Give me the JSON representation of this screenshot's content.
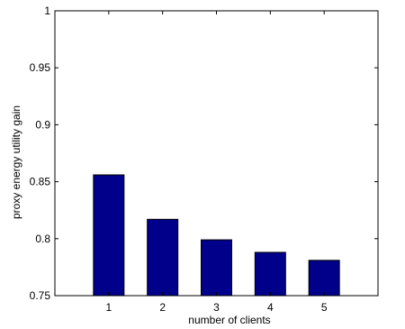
{
  "chart_data": {
    "type": "bar",
    "categories": [
      "1",
      "2",
      "3",
      "4",
      "5"
    ],
    "values": [
      0.856,
      0.817,
      0.799,
      0.788,
      0.781
    ],
    "title": "",
    "xlabel": "number of clients",
    "ylabel": "proxy energy utility gain",
    "ylim": [
      0.75,
      1.0
    ],
    "yticks": [
      "0.75",
      "0.8",
      "0.85",
      "0.9",
      "0.95",
      "1"
    ],
    "grid": false,
    "bar_color": "#00008b"
  }
}
